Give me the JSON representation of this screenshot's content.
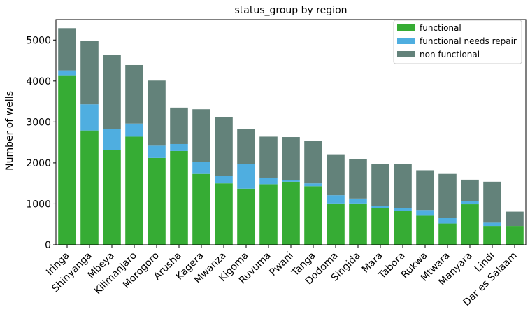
{
  "chart_data": {
    "type": "bar",
    "stacked": true,
    "title": "status_group by region",
    "xlabel": "",
    "ylabel": "Number of wells",
    "ylim": [
      0,
      5500
    ],
    "yticks": [
      0,
      1000,
      2000,
      3000,
      4000,
      5000
    ],
    "grid": false,
    "legend_position": "top-right",
    "categories": [
      "Iringa",
      "Shinyanga",
      "Mbeya",
      "Kilimanjaro",
      "Morogoro",
      "Arusha",
      "Kagera",
      "Mwanza",
      "Kigoma",
      "Ruvuma",
      "Pwani",
      "Tanga",
      "Dodoma",
      "Singida",
      "Mara",
      "Tabora",
      "Rukwa",
      "Mtwara",
      "Manyara",
      "Lindi",
      "Dar es Salaam"
    ],
    "series": [
      {
        "name": "functional",
        "color": "#36ac34",
        "values": [
          4140,
          2790,
          2320,
          2640,
          2120,
          2290,
          1730,
          1500,
          1370,
          1480,
          1540,
          1430,
          1010,
          1010,
          890,
          830,
          710,
          520,
          990,
          460,
          460
        ]
      },
      {
        "name": "functional needs repair",
        "color": "#4faee0",
        "values": [
          120,
          640,
          500,
          320,
          300,
          170,
          300,
          190,
          600,
          160,
          40,
          70,
          200,
          120,
          60,
          70,
          140,
          130,
          80,
          80,
          0
        ]
      },
      {
        "name": "non functional",
        "color": "#63827a",
        "values": [
          1030,
          1550,
          1820,
          1430,
          1590,
          890,
          1280,
          1420,
          850,
          1000,
          1050,
          1040,
          1000,
          960,
          1020,
          1080,
          970,
          1080,
          520,
          1000,
          350
        ]
      }
    ]
  }
}
